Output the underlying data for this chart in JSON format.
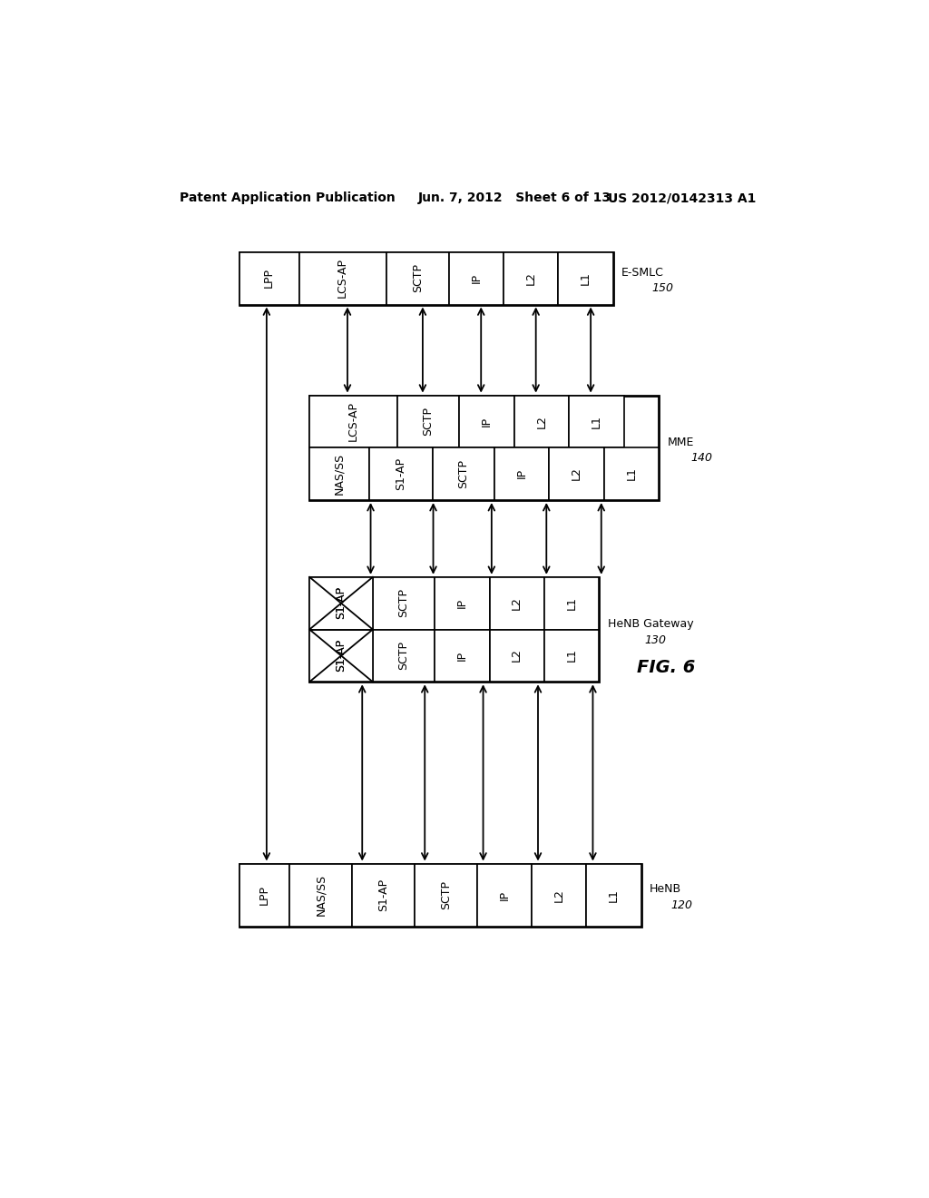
{
  "title_left": "Patent Application Publication",
  "title_center": "Jun. 7, 2012   Sheet 6 of 13",
  "title_right": "US 2012/0142313 A1",
  "fig_label": "FIG. 6",
  "esmlc_label": "E-SMLC",
  "esmlc_number": "150",
  "esmlc_cells": [
    "LPP",
    "LCS-AP",
    "SCTP",
    "IP",
    "L2",
    "L1"
  ],
  "mme_label": "MME",
  "mme_number": "140",
  "mme_top_cells": [
    "LCS-AP",
    "SCTP",
    "IP",
    "L2",
    "L1"
  ],
  "mme_bot_cells": [
    "NAS/SS",
    "S1-AP",
    "SCTP",
    "IP",
    "L2",
    "L1"
  ],
  "gw_label": "HeNB Gateway",
  "gw_number": "130",
  "gw_top_cells": [
    "S1-AP",
    "SCTP",
    "IP",
    "L2",
    "L1"
  ],
  "gw_bot_cells": [
    "S1-AP",
    "SCTP",
    "IP",
    "L2",
    "L1"
  ],
  "henb_label": "HeNB",
  "henb_number": "120",
  "henb_cells": [
    "LPP",
    "NAS/SS",
    "S1-AP",
    "SCTP",
    "IP",
    "L2",
    "L1"
  ],
  "bg_color": "#ffffff",
  "box_edge_color": "#000000",
  "text_color": "#000000",
  "arrow_color": "#000000"
}
